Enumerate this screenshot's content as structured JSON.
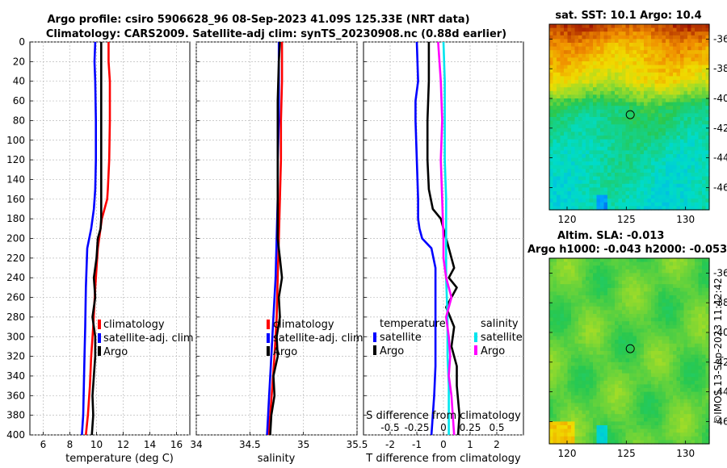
{
  "header": {
    "line1": "Argo profile: csiro 5906628_96 08-Sep-2023 41.09S 125.33E (NRT data)",
    "line2": "Climatology: CARS2009. Satellite-adj clim: synTS_20230908.nc (0.88d earlier)"
  },
  "depth_axis": {
    "ylim": [
      0,
      400
    ],
    "ticks": [
      "0",
      "20",
      "40",
      "60",
      "80",
      "100",
      "120",
      "140",
      "160",
      "180",
      "200",
      "220",
      "240",
      "260",
      "280",
      "300",
      "320",
      "340",
      "360",
      "380",
      "400"
    ]
  },
  "temperature_panel": {
    "xlabel": "temperature (deg C)",
    "xlim": [
      5,
      17
    ],
    "xticks": [
      {
        "v": 6,
        "t": "6"
      },
      {
        "v": 8,
        "t": "8"
      },
      {
        "v": 10,
        "t": "10"
      },
      {
        "v": 12,
        "t": "12"
      },
      {
        "v": 14,
        "t": "14"
      },
      {
        "v": 16,
        "t": "16"
      }
    ],
    "legend": [
      "climatology",
      "satellite-adj. clim",
      "Argo"
    ]
  },
  "salinity_panel": {
    "xlabel": "salinity",
    "xlim": [
      34,
      35.5
    ],
    "xticks": [
      {
        "v": 34,
        "t": "34"
      },
      {
        "v": 34.5,
        "t": "34.5"
      },
      {
        "v": 35,
        "t": "35"
      },
      {
        "v": 35.5,
        "t": "35.5"
      }
    ],
    "legend": [
      "climatology",
      "satellite-adj. clim",
      "Argo"
    ]
  },
  "difference_panel": {
    "xlabel": "T difference from climatology",
    "top_label": "S difference from climatology",
    "xlim": [
      -3,
      3
    ],
    "xticks": [
      {
        "v": -2,
        "t": "-2"
      },
      {
        "v": -1,
        "t": "-1"
      },
      {
        "v": 0,
        "t": "0"
      },
      {
        "v": 1,
        "t": "1"
      },
      {
        "v": 2,
        "t": "2"
      }
    ],
    "s_ticks": [
      {
        "v": -2,
        "t": "-0.5"
      },
      {
        "v": -1,
        "t": "-0.25"
      },
      {
        "v": 0,
        "t": "0"
      },
      {
        "v": 1,
        "t": "0.25"
      },
      {
        "v": 2,
        "t": "0.5"
      }
    ],
    "legend_t_title": "temperature",
    "legend_s_title": "salinity",
    "legend_t": [
      "satellite",
      "Argo"
    ],
    "legend_s": [
      "satellite",
      "Argo"
    ]
  },
  "sst_map": {
    "title": "sat. SST: 10.1 Argo: 10.4",
    "yticks": [
      {
        "v": -36,
        "t": "-36"
      },
      {
        "v": -38,
        "t": "-38"
      },
      {
        "v": -40,
        "t": "-40"
      },
      {
        "v": -42,
        "t": "-42"
      },
      {
        "v": -44,
        "t": "-44"
      },
      {
        "v": -46,
        "t": "-46"
      }
    ],
    "xticks": [
      {
        "v": 120,
        "t": "120"
      },
      {
        "v": 125,
        "t": "125"
      },
      {
        "v": 130,
        "t": "130"
      }
    ],
    "xlim": [
      118.5,
      132
    ],
    "ylim": [
      -47.5,
      -35
    ]
  },
  "sla_map": {
    "title1": "Altim. SLA: -0.013",
    "title2": "Argo h1000: -0.043 h2000: -0.053",
    "yticks": [
      {
        "v": -36,
        "t": "-36"
      },
      {
        "v": -38,
        "t": "-38"
      },
      {
        "v": -40,
        "t": "-40"
      },
      {
        "v": -42,
        "t": "-42"
      },
      {
        "v": -44,
        "t": "-44"
      },
      {
        "v": -46,
        "t": "-46"
      }
    ],
    "xticks": [
      {
        "v": 120,
        "t": "120"
      },
      {
        "v": 125,
        "t": "125"
      },
      {
        "v": 130,
        "t": "130"
      }
    ],
    "xlim": [
      118.5,
      132
    ],
    "ylim": [
      -47.5,
      -35
    ]
  },
  "float_position": {
    "lon": 125.33,
    "lat": -41.09
  },
  "watermark": "©IMOS 13-Sep-2023 11:42:42",
  "colors": {
    "climatology": "#ff0000",
    "satellite": "#0000ff",
    "argo": "#000000",
    "sal_satellite": "#00e5ee",
    "sal_argo": "#ff00ff"
  },
  "chart_data": [
    {
      "type": "line",
      "title": "temperature profile",
      "xlabel": "temperature (deg C)",
      "ylabel": "depth",
      "xlim": [
        5,
        17
      ],
      "ylim": [
        400,
        0
      ],
      "series": [
        {
          "name": "climatology",
          "x": [
            10.9,
            10.9,
            11.0,
            11.0,
            10.95,
            10.85,
            10.8,
            10.4,
            10.1,
            9.9,
            9.75,
            9.6,
            9.5,
            9.35,
            9.2
          ],
          "y": [
            0,
            20,
            40,
            80,
            120,
            150,
            160,
            180,
            210,
            250,
            290,
            320,
            350,
            380,
            400
          ]
        },
        {
          "name": "satellite-adj. clim",
          "x": [
            9.9,
            9.85,
            9.9,
            9.95,
            9.95,
            9.9,
            9.8,
            9.6,
            9.3,
            9.2,
            9.15,
            9.1,
            9.05,
            9.0,
            8.9
          ],
          "y": [
            0,
            20,
            40,
            80,
            120,
            150,
            170,
            190,
            210,
            250,
            290,
            320,
            350,
            380,
            400
          ]
        },
        {
          "name": "Argo",
          "x": [
            10.35,
            10.35,
            10.35,
            10.35,
            10.35,
            10.35,
            10.3,
            10.1,
            10.0,
            9.8,
            9.9,
            9.7,
            9.9,
            9.9,
            9.8,
            9.7,
            9.75,
            9.65
          ],
          "y": [
            0,
            40,
            80,
            120,
            160,
            180,
            190,
            200,
            220,
            240,
            260,
            280,
            300,
            320,
            340,
            360,
            380,
            400
          ]
        }
      ]
    },
    {
      "type": "line",
      "title": "salinity profile",
      "xlabel": "salinity",
      "ylabel": "depth",
      "xlim": [
        34,
        35.5
      ],
      "ylim": [
        400,
        0
      ],
      "series": [
        {
          "name": "climatology",
          "x": [
            34.8,
            34.8,
            34.79,
            34.79,
            34.78,
            34.77,
            34.76,
            34.75,
            34.73,
            34.71,
            34.69,
            34.67
          ],
          "y": [
            0,
            40,
            80,
            120,
            160,
            200,
            240,
            280,
            320,
            350,
            380,
            400
          ]
        },
        {
          "name": "satellite-adj. clim",
          "x": [
            34.77,
            34.77,
            34.77,
            34.76,
            34.76,
            34.75,
            34.74,
            34.72,
            34.7,
            34.68,
            34.66
          ],
          "y": [
            0,
            40,
            80,
            120,
            160,
            200,
            240,
            280,
            320,
            360,
            400
          ]
        },
        {
          "name": "Argo",
          "x": [
            34.78,
            34.77,
            34.76,
            34.76,
            34.76,
            34.76,
            34.76,
            34.78,
            34.8,
            34.77,
            34.78,
            34.75,
            34.76,
            34.72,
            34.73,
            34.7,
            34.69
          ],
          "y": [
            0,
            20,
            60,
            100,
            140,
            180,
            200,
            220,
            240,
            260,
            280,
            300,
            320,
            340,
            360,
            380,
            400
          ]
        }
      ]
    },
    {
      "type": "line",
      "title": "difference from climatology",
      "xlabel": "T difference from climatology",
      "ylabel": "depth",
      "xlim": [
        -3,
        3
      ],
      "ylim": [
        400,
        0
      ],
      "series": [
        {
          "name": "temperature satellite",
          "x": [
            -1.0,
            -0.95,
            -1.05,
            -1.05,
            -1.0,
            -0.95,
            -0.95,
            -0.9,
            -0.8,
            -0.45,
            -0.3,
            -0.3,
            -0.3,
            -0.3,
            -0.35,
            -0.4,
            -0.45
          ],
          "y": [
            0,
            40,
            60,
            80,
            120,
            160,
            180,
            190,
            200,
            210,
            230,
            260,
            300,
            330,
            360,
            380,
            400
          ]
        },
        {
          "name": "temperature Argo",
          "x": [
            -0.55,
            -0.55,
            -0.6,
            -0.6,
            -0.55,
            -0.4,
            -0.1,
            0.0,
            0.1,
            0.4,
            0.2,
            0.5,
            0.1,
            0.4,
            0.3,
            0.5,
            0.5,
            0.6,
            0.55
          ],
          "y": [
            0,
            40,
            80,
            120,
            150,
            170,
            180,
            190,
            200,
            230,
            240,
            250,
            270,
            290,
            310,
            330,
            350,
            380,
            400
          ]
        },
        {
          "name": "salinity satellite",
          "x": [
            0.0,
            0.05,
            0.05,
            0.05,
            0.1,
            0.1,
            0.1,
            0.15,
            0.15,
            0.2,
            0.2,
            0.2
          ],
          "y": [
            0,
            40,
            80,
            120,
            160,
            200,
            240,
            280,
            320,
            350,
            380,
            400
          ]
        },
        {
          "name": "salinity Argo",
          "x": [
            -0.2,
            -0.1,
            -0.05,
            -0.1,
            -0.05,
            0.0,
            0.0,
            0.1,
            0.3,
            0.1,
            0.2,
            0.25,
            0.2,
            0.3,
            0.35,
            0.4
          ],
          "y": [
            0,
            40,
            80,
            120,
            160,
            200,
            220,
            240,
            260,
            280,
            300,
            320,
            340,
            360,
            380,
            400
          ]
        }
      ]
    }
  ]
}
